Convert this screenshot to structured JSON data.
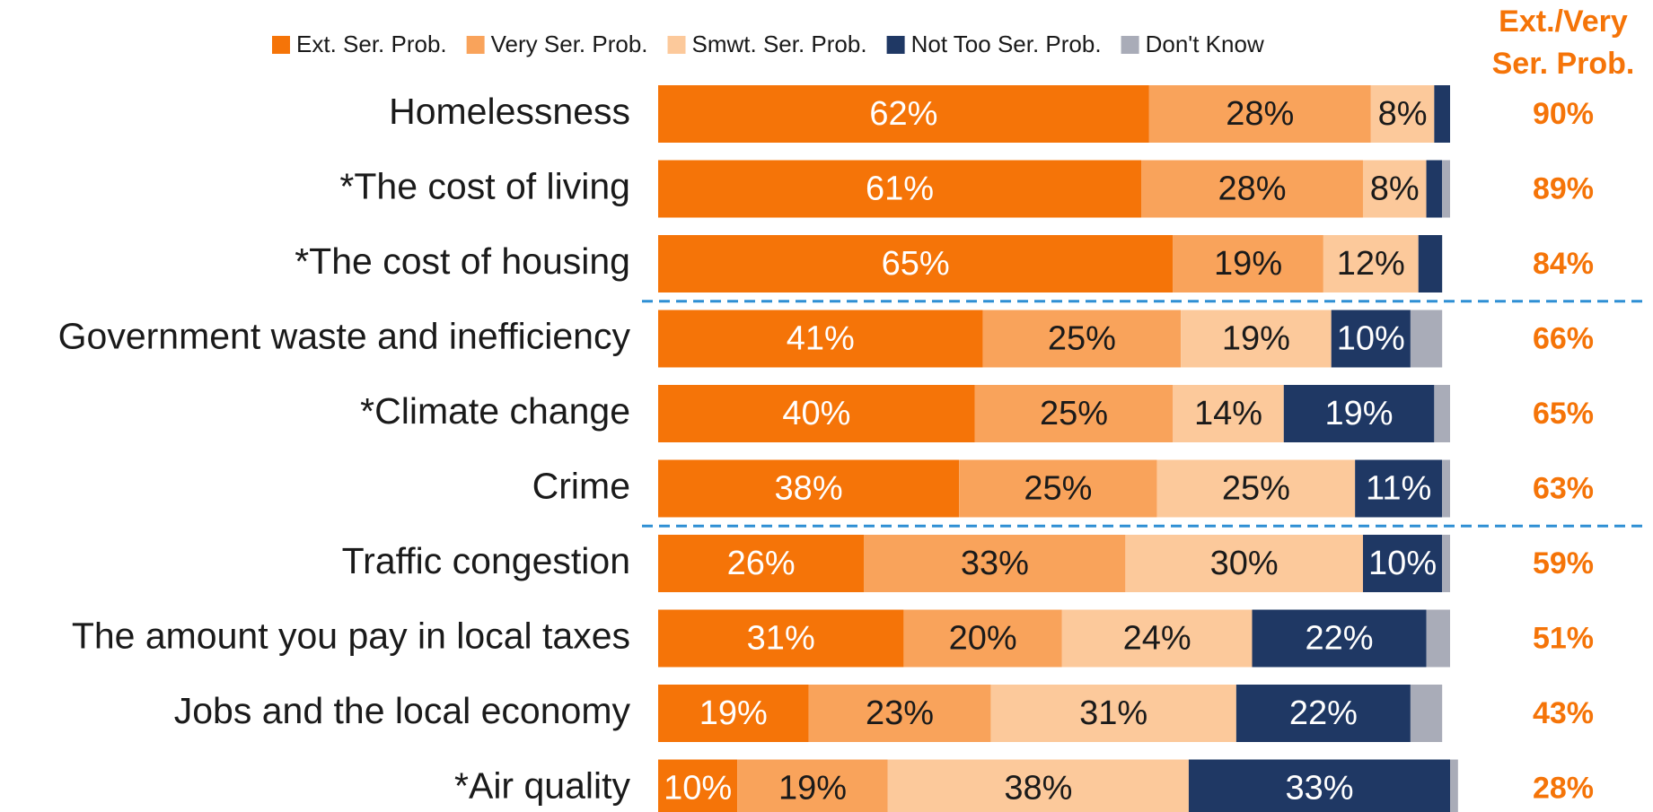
{
  "chart_data": {
    "type": "stacked-bar-horizontal",
    "categories": [
      "Homelessness",
      "*The cost of living",
      "*The cost of housing",
      "Government waste and inefficiency",
      "*Climate change",
      "Crime",
      "Traffic congestion",
      "The amount you pay in local taxes",
      "Jobs and the local economy",
      "*Air quality"
    ],
    "xlim": [
      0,
      100
    ],
    "legend": "top",
    "series": [
      {
        "name": "Ext. Ser. Prob.",
        "color": "#f57408",
        "label_color": "#ffffff",
        "values": [
          62,
          61,
          65,
          41,
          40,
          38,
          26,
          31,
          19,
          10
        ],
        "value_labels": [
          "62%",
          "61%",
          "65%",
          "41%",
          "40%",
          "38%",
          "26%",
          "31%",
          "19%",
          "10%"
        ]
      },
      {
        "name": "Very Ser. Prob.",
        "color": "#f9a35b",
        "label_color": "#1a1a1a",
        "values": [
          28,
          28,
          19,
          25,
          25,
          25,
          33,
          20,
          23,
          19
        ],
        "value_labels": [
          "28%",
          "28%",
          "19%",
          "25%",
          "25%",
          "25%",
          "33%",
          "20%",
          "23%",
          "19%"
        ]
      },
      {
        "name": "Smwt. Ser. Prob.",
        "color": "#fcc99b",
        "label_color": "#1a1a1a",
        "values": [
          8,
          8,
          12,
          19,
          14,
          25,
          30,
          24,
          31,
          38
        ],
        "value_labels": [
          "8%",
          "8%",
          "12%",
          "19%",
          "14%",
          "25%",
          "30%",
          "24%",
          "31%",
          "38%"
        ]
      },
      {
        "name": "Not Too Ser. Prob.",
        "color": "#1f3864",
        "label_color": "#ffffff",
        "values": [
          2,
          2,
          3,
          10,
          19,
          11,
          10,
          22,
          22,
          33
        ],
        "value_labels": [
          null,
          null,
          null,
          "10%",
          "19%",
          "11%",
          "10%",
          "22%",
          "22%",
          "33%"
        ]
      },
      {
        "name": "Don't Know",
        "color": "#a9acb8",
        "label_color": "#1a1a1a",
        "values": [
          0,
          1,
          0,
          4,
          2,
          1,
          1,
          3,
          4,
          1
        ],
        "value_labels": [
          null,
          null,
          null,
          null,
          null,
          null,
          null,
          null,
          null,
          null
        ]
      }
    ],
    "net": {
      "title_lines": [
        "Ext./Very",
        "Ser. Prob."
      ],
      "color": "#f57408",
      "values": [
        90,
        89,
        84,
        66,
        65,
        63,
        59,
        51,
        43,
        28
      ],
      "value_labels": [
        "90%",
        "89%",
        "84%",
        "66%",
        "65%",
        "63%",
        "59%",
        "51%",
        "43%",
        "28%"
      ]
    }
  }
}
